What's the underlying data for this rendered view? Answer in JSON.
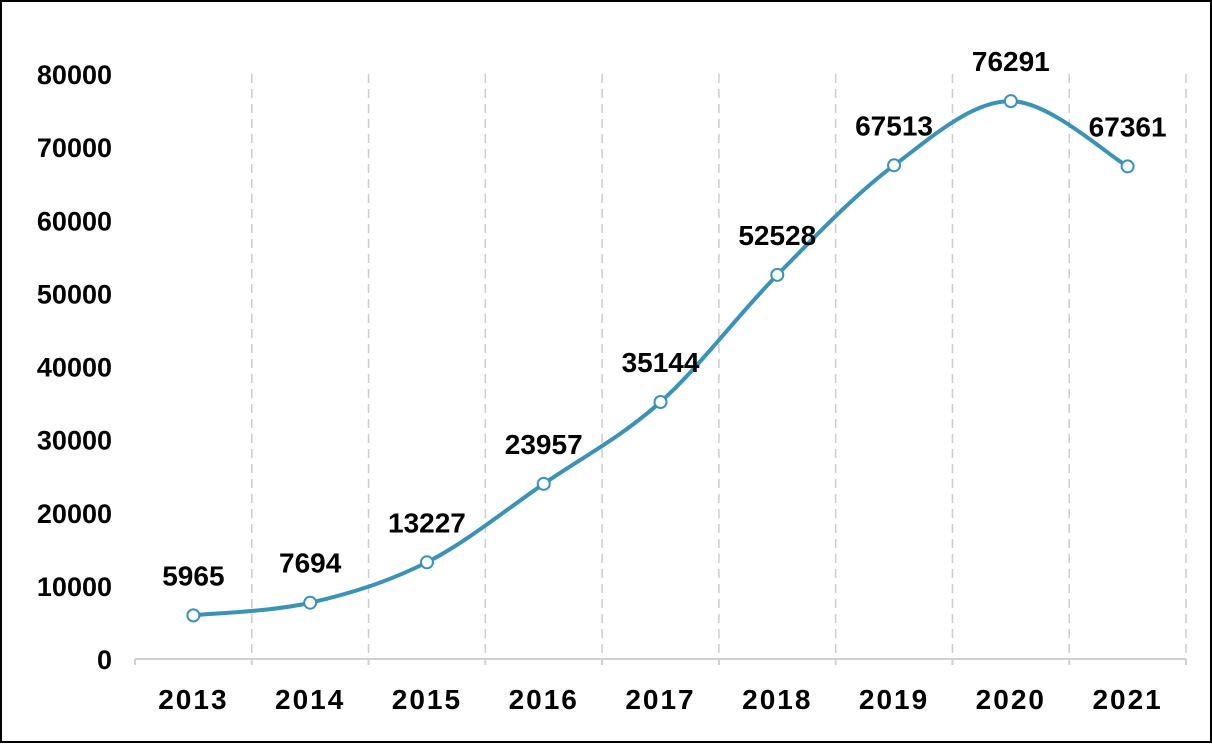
{
  "chart_data": {
    "type": "line",
    "smooth": true,
    "x": [
      "2013",
      "2014",
      "2015",
      "2016",
      "2017",
      "2018",
      "2019",
      "2020",
      "2021"
    ],
    "series": [
      {
        "values": [
          5965,
          7694,
          13227,
          23957,
          35144,
          52528,
          67513,
          76291,
          67361
        ],
        "color": "#3a93b7"
      }
    ],
    "data_labels": [
      "5965",
      "7694",
      "13227",
      "23957",
      "35144",
      "52528",
      "67513",
      "76291",
      "67361"
    ],
    "yticks": [
      "0",
      "10000",
      "20000",
      "30000",
      "40000",
      "50000",
      "60000",
      "70000",
      "80000"
    ],
    "ylim": [
      0,
      80000
    ],
    "title": "",
    "xlabel": "",
    "ylabel": "",
    "grid": {
      "vertical": true,
      "horizontal": false,
      "style": "dashed",
      "color": "#cccccc"
    },
    "axis_color": "#d0d0d0",
    "marker_fill": "#ffffff",
    "legend": "none"
  }
}
